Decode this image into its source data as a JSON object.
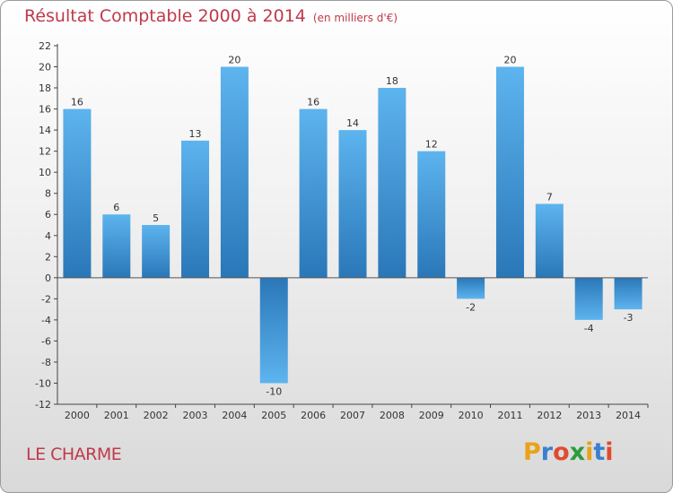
{
  "header": {
    "title": "Résultat Comptable 2000 à 2014",
    "unit": "(en milliers d'€)"
  },
  "footer": {
    "town": "LE CHARME",
    "brand_letters": [
      "P",
      "r",
      "o",
      "x",
      "i",
      "t",
      "i"
    ],
    "brand_colors": [
      "#e8a317",
      "#3a7fd0",
      "#e04b2f",
      "#2a9d3c",
      "#e8a317",
      "#3a7fd0",
      "#e04b2f"
    ]
  },
  "colors": {
    "title": "#c0394b",
    "bar_light": "#5db4ee",
    "bar_dark": "#2a77b8",
    "axis": "#444444"
  },
  "chart_data": {
    "type": "bar",
    "title": "Résultat Comptable 2000 à 2014",
    "ylabel": "",
    "xlabel": "",
    "ylim": [
      -12,
      22
    ],
    "yticks": [
      22,
      20,
      18,
      16,
      14,
      12,
      10,
      8,
      6,
      4,
      2,
      0,
      -2,
      -4,
      -6,
      -8,
      -10,
      -12
    ],
    "ytick_labels": [
      "22",
      "20",
      "18",
      "16",
      "14",
      "12",
      "10",
      "8",
      "6",
      "4",
      "2",
      "0",
      "-2",
      "-4",
      "-6",
      "-8",
      "-10",
      "-12"
    ],
    "categories": [
      "2000",
      "2001",
      "2002",
      "2003",
      "2004",
      "2005",
      "2006",
      "2007",
      "2008",
      "2009",
      "2010",
      "2011",
      "2012",
      "2013",
      "2014"
    ],
    "values": [
      16,
      6,
      5,
      13,
      20,
      -10,
      16,
      14,
      18,
      12,
      -2,
      20,
      7,
      -4,
      -3
    ],
    "value_labels": [
      "16",
      "6",
      "5",
      "13",
      "20",
      "-10",
      "16",
      "14",
      "18",
      "12",
      "-2",
      "20",
      "7",
      "-4",
      "-3"
    ]
  }
}
